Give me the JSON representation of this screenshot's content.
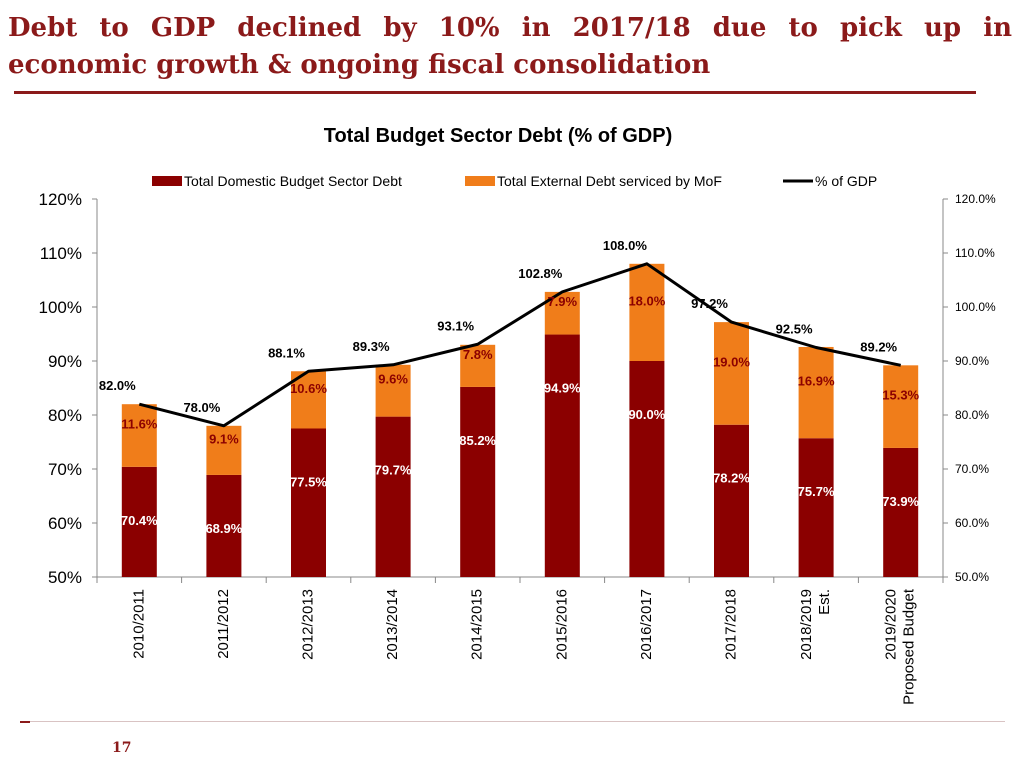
{
  "slide": {
    "title_line1": "Debt to GDP declined by 10%  in 2017/18  due to pick up in",
    "title_line2": "economic growth & ongoing fiscal consolidation",
    "page_number": "17"
  },
  "colors": {
    "title": "#8b1a1a",
    "domestic": "#8b0000",
    "external": "#f07d1a",
    "line": "#000000"
  },
  "chart_data": {
    "type": "bar",
    "stacked": true,
    "title": "Total Budget Sector Debt (% of GDP)",
    "categories": [
      [
        "2010/2011"
      ],
      [
        "2011/2012"
      ],
      [
        "2012/2013"
      ],
      [
        "2013/2014"
      ],
      [
        "2014/2015"
      ],
      [
        "2015/2016"
      ],
      [
        "2016/2017"
      ],
      [
        "2017/2018"
      ],
      [
        "2018/2019",
        "Est."
      ],
      [
        "2019/2020",
        "Proposed Budget"
      ]
    ],
    "series": [
      {
        "name": "Total Domestic Budget Sector Debt",
        "kind": "bar",
        "values": [
          70.4,
          68.9,
          77.5,
          79.7,
          85.2,
          94.9,
          90.0,
          78.2,
          75.7,
          73.9
        ],
        "labels": [
          "70.4%",
          "68.9%",
          "77.5%",
          "79.7%",
          "85.2%",
          "94.9%",
          "90.0%",
          "78.2%",
          "75.7%",
          "73.9%"
        ]
      },
      {
        "name": "Total External Debt serviced by MoF",
        "kind": "bar",
        "values": [
          11.6,
          9.1,
          10.6,
          9.6,
          7.8,
          7.9,
          18.0,
          19.0,
          16.9,
          15.3
        ],
        "labels": [
          "11.6%",
          "9.1%",
          "10.6%",
          "9.6%",
          "7.8%",
          "7.9%",
          "18.0%",
          "19.0%",
          "16.9%",
          "15.3%"
        ]
      },
      {
        "name": "% of GDP",
        "kind": "line",
        "values": [
          82.0,
          78.0,
          88.1,
          89.3,
          93.1,
          102.8,
          108.0,
          97.2,
          92.5,
          89.2
        ],
        "labels": [
          "82.0%",
          "78.0%",
          "88.1%",
          "89.3%",
          "93.1%",
          "102.8%",
          "108.0%",
          "97.2%",
          "92.5%",
          "89.2%"
        ]
      }
    ],
    "y_left": {
      "min": 50,
      "max": 120,
      "step": 10,
      "ticks": [
        "50%",
        "60%",
        "70%",
        "80%",
        "90%",
        "100%",
        "110%",
        "120%"
      ]
    },
    "y_right": {
      "min": 50,
      "max": 120,
      "step": 10,
      "ticks": [
        "50.0%",
        "60.0%",
        "70.0%",
        "80.0%",
        "90.0%",
        "100.0%",
        "110.0%",
        "120.0%"
      ]
    },
    "grid": false,
    "legend_position": "top"
  }
}
